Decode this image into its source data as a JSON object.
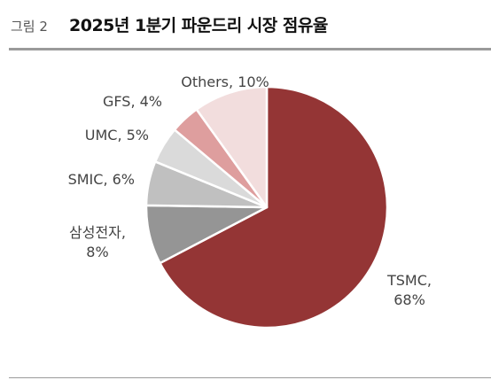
{
  "header": {
    "figure_number": "그림 2",
    "title": "2025년 1분기 파운드리 시장 점유율"
  },
  "chart_data": {
    "type": "pie",
    "title": "2025년 1분기 파운드리 시장 점유율",
    "unit": "%",
    "slices": [
      {
        "label": "TSMC",
        "value": 68,
        "display": [
          "TSMC,",
          "68%"
        ],
        "color": "#943535"
      },
      {
        "label": "삼성전자",
        "value": 8,
        "display": [
          "삼성전자,",
          "8%"
        ],
        "color": "#959595"
      },
      {
        "label": "SMIC",
        "value": 6,
        "display": [
          "SMIC, 6%"
        ],
        "color": "#c0c0c0"
      },
      {
        "label": "UMC",
        "value": 5,
        "display": [
          "UMC, 5%"
        ],
        "color": "#dadada"
      },
      {
        "label": "GFS",
        "value": 4,
        "display": [
          "GFS, 4%"
        ],
        "color": "#de9e9e"
      },
      {
        "label": "Others",
        "value": 10,
        "display": [
          "Others, 10%"
        ],
        "color": "#f2dddd"
      }
    ]
  }
}
